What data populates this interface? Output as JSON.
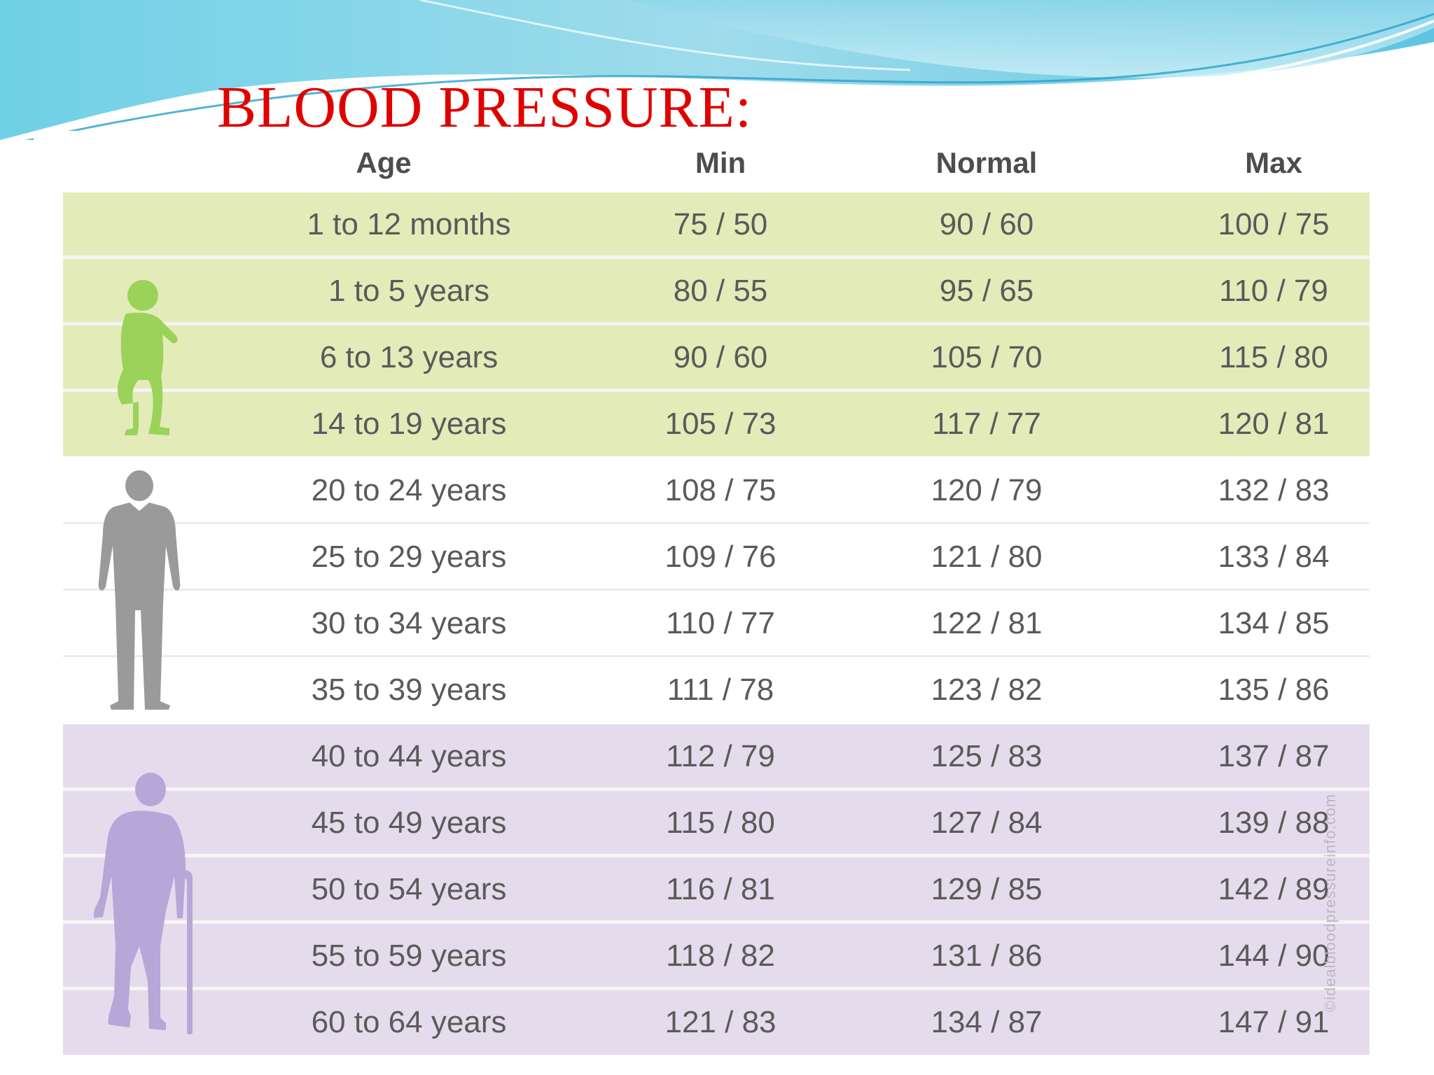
{
  "slide": {
    "title": "BLOOD PRESSURE:"
  },
  "table": {
    "headers": {
      "age": "Age",
      "min": "Min",
      "normal": "Normal",
      "max": "Max"
    },
    "rows": [
      {
        "age": "1 to 12 months",
        "min": "75 / 50",
        "normal": "90 / 60",
        "max": "100 / 75",
        "group": "child"
      },
      {
        "age": "1 to 5 years",
        "min": "80 / 55",
        "normal": "95 / 65",
        "max": "110 / 79",
        "group": "child"
      },
      {
        "age": "6 to 13 years",
        "min": "90 / 60",
        "normal": "105 / 70",
        "max": "115 / 80",
        "group": "child"
      },
      {
        "age": "14 to 19 years",
        "min": "105 / 73",
        "normal": "117 / 77",
        "max": "120 / 81",
        "group": "child"
      },
      {
        "age": "20 to 24 years",
        "min": "108 / 75",
        "normal": "120 / 79",
        "max": "132 / 83",
        "group": "adult"
      },
      {
        "age": "25 to 29 years",
        "min": "109 / 76",
        "normal": "121 / 80",
        "max": "133 / 84",
        "group": "adult"
      },
      {
        "age": "30 to 34 years",
        "min": "110 / 77",
        "normal": "122 / 81",
        "max": "134 / 85",
        "group": "adult"
      },
      {
        "age": "35 to 39 years",
        "min": "111 / 78",
        "normal": "123 / 82",
        "max": "135 / 86",
        "group": "adult"
      },
      {
        "age": "40 to 44 years",
        "min": "112 / 79",
        "normal": "125 / 83",
        "max": "137 / 87",
        "group": "senior"
      },
      {
        "age": "45 to 49 years",
        "min": "115 / 80",
        "normal": "127 / 84",
        "max": "139 / 88",
        "group": "senior"
      },
      {
        "age": "50 to 54 years",
        "min": "116 / 81",
        "normal": "129 / 85",
        "max": "142 / 89",
        "group": "senior"
      },
      {
        "age": "55 to 59 years",
        "min": "118 / 82",
        "normal": "131 / 86",
        "max": "144 / 90",
        "group": "senior"
      },
      {
        "age": "60 to 64 years",
        "min": "121 / 83",
        "normal": "134 / 87",
        "max": "147 / 91",
        "group": "senior"
      }
    ]
  },
  "figures": {
    "child": {
      "icon": "child-silhouette-icon",
      "color": "#9bd25a"
    },
    "adult": {
      "icon": "adult-silhouette-icon",
      "color": "#9a9a9a"
    },
    "senior": {
      "icon": "elderly-with-cane-silhouette-icon",
      "color": "#b7a6d8"
    }
  },
  "watermark": "©idealbloodpressureinfo.com",
  "colors": {
    "title": "#e00000",
    "child_band": "#e3ebb9",
    "adult_band": "#ffffff",
    "senior_band": "#e4dced"
  }
}
